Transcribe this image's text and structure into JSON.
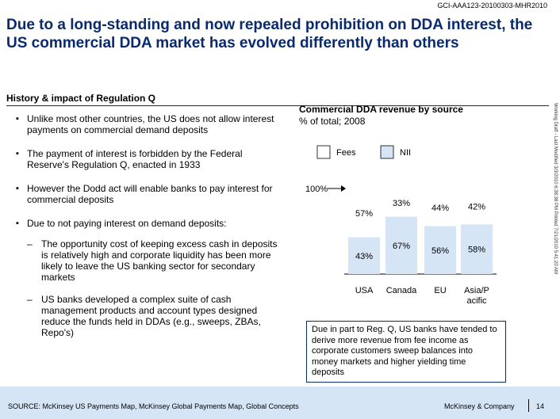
{
  "doc_id": "GCI-AAA123-20100303-MHR2010",
  "title": "Due to a long-standing and now repealed prohibition on DDA interest, the US commercial DDA market has evolved differently than others",
  "section_title": "History & impact of Regulation Q",
  "bullets": [
    "Unlike most other countries, the US does not allow interest payments on commercial demand deposits",
    "The payment of interest is forbidden by the Federal Reserve's Regulation Q, enacted in 1933",
    "However the Dodd act will enable banks to pay interest for commercial deposits",
    "Due to not paying interest on demand deposits:"
  ],
  "sub_bullets": [
    "The opportunity cost of keeping excess cash in deposits is relatively high and corporate liquidity has been more likely to leave the US banking sector for secondary markets",
    "US banks developed a complex suite of cash management products and account types designed reduce the funds held in DDAs (e.g., sweeps, ZBAs, Repo's)"
  ],
  "side_note": "Working Draft - Last Modified 3/3/2010 6:38:38 PM     Printed 7/21/2010 5:41:20 AM",
  "callout": "Due in part to Reg. Q, US banks have tended to derive more revenue from fee income as corporate customers sweep balances into money markets and higher yielding time deposits",
  "footer": {
    "source": "SOURCE: McKinsey US Payments Map, McKinsey Global Payments Map, Global Concepts",
    "brand": "McKinsey & Company",
    "page": "14"
  },
  "colors": {
    "fees": "#ffffff",
    "nii": "#d6e5f5",
    "accent": "#0a2a6e",
    "footer_bg": "#d6e5f5"
  },
  "chart_data": {
    "type": "bar",
    "stacked": true,
    "title": "Commercial DDA revenue by source",
    "subtitle": "% of total; 2008",
    "axis_label": "100%",
    "categories": [
      "USA",
      "Canada",
      "EU",
      "Asia/Pacific"
    ],
    "category_labels": [
      "USA",
      "Canada",
      "EU",
      "Asia/P\nacific"
    ],
    "series": [
      {
        "name": "NII",
        "values": [
          43,
          67,
          56,
          58
        ]
      },
      {
        "name": "Fees",
        "values": [
          57,
          33,
          44,
          42
        ]
      }
    ],
    "data_labels": [
      [
        "43%",
        "67%",
        "56%",
        "58%"
      ],
      [
        "57%",
        "33%",
        "44%",
        "42%"
      ]
    ],
    "legend": [
      "Fees",
      "NII"
    ],
    "legend_position": "top",
    "ylim": [
      0,
      100
    ]
  }
}
